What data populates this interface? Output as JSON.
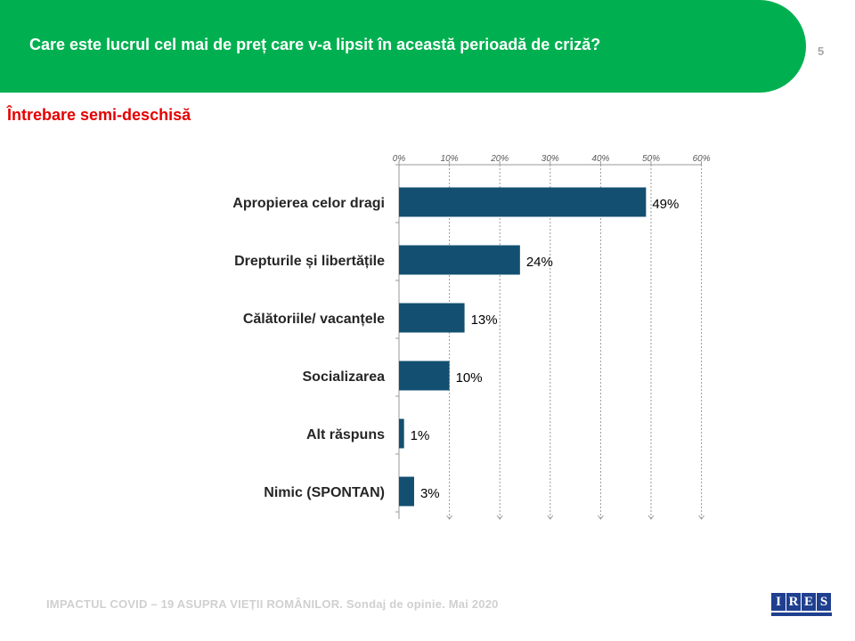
{
  "header": {
    "title": "Care este lucrul cel mai de preț care v-a lipsit în această perioadă de criză?",
    "page_number": "5",
    "color": "#00b050"
  },
  "subtitle": "Întrebare semi-deschisă",
  "footer": "IMPACTUL COVID – 19 ASUPRA VIEȚII ROMÂNILOR. Sondaj de opinie. Mai 2020",
  "logo": {
    "letters": [
      "I",
      "R",
      "E",
      "S"
    ]
  },
  "chart_data": {
    "type": "bar",
    "orientation": "horizontal",
    "categories": [
      "Apropierea celor dragi",
      "Drepturile și libertățile",
      "Călătoriile/ vacanțele",
      "Socializarea",
      "Alt răspuns",
      "Nimic (SPONTAN)"
    ],
    "values": [
      49,
      24,
      13,
      10,
      1,
      3
    ],
    "value_labels": [
      "49%",
      "24%",
      "13%",
      "10%",
      "1%",
      "3%"
    ],
    "xlim": [
      0,
      60
    ],
    "xticks": [
      0,
      10,
      20,
      30,
      40,
      50,
      60
    ],
    "xtick_labels": [
      "0%",
      "10%",
      "20%",
      "30%",
      "40%",
      "50%",
      "60%"
    ],
    "axis_position": "top",
    "grid": "vertical dashed",
    "bar_color": "#124f70"
  }
}
